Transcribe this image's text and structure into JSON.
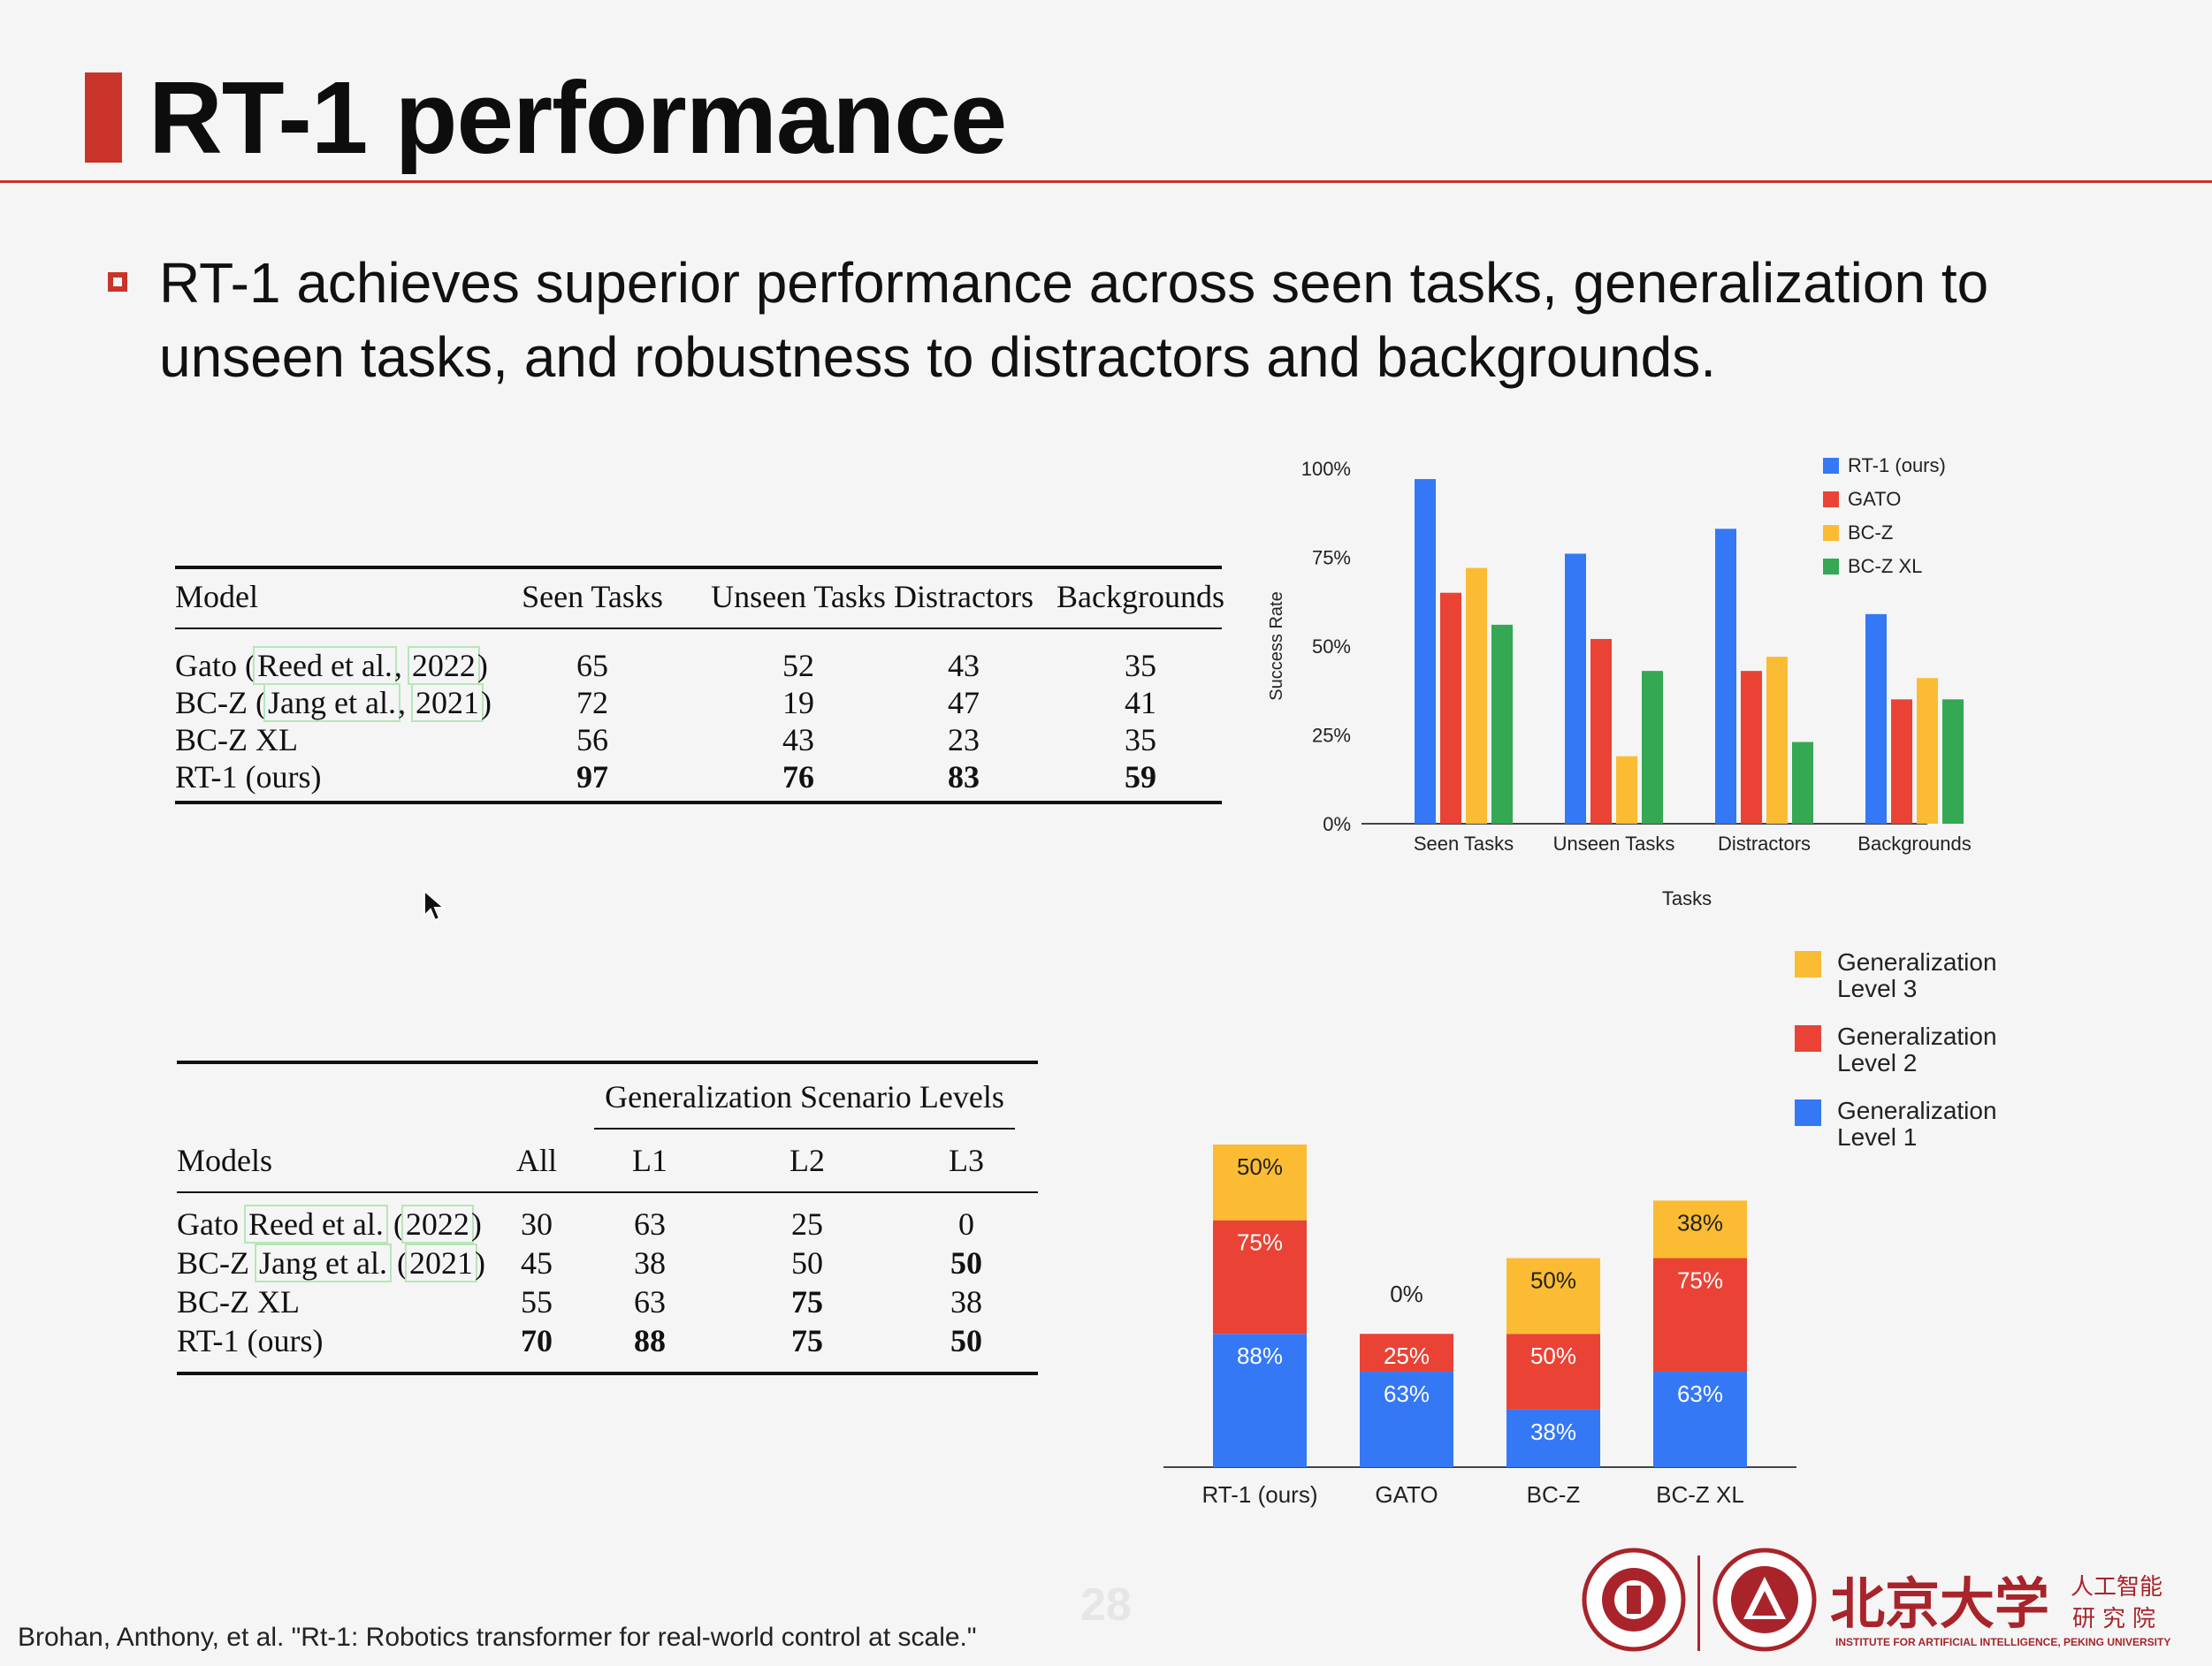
{
  "slide": {
    "title": "RT-1 performance",
    "bullet": "RT-1 achieves superior performance across seen tasks, generalization to unseen tasks, and robustness to distractors and backgrounds.",
    "reference": "Brohan, Anthony, et al. \"Rt-1: Robotics transformer for real-world control at scale.\"",
    "page_number": "28",
    "accent_color": "#c9342a"
  },
  "table1": {
    "headers": [
      "Model",
      "Seen Tasks",
      "Unseen Tasks",
      "Distractors",
      "Backgrounds"
    ],
    "rows": [
      {
        "model": "Gato",
        "cite_a": "Reed et al.",
        "cite_b": "2022",
        "values": [
          "65",
          "52",
          "43",
          "35"
        ],
        "bold": false
      },
      {
        "model": "BC-Z",
        "cite_a": "Jang et al.",
        "cite_b": "2021",
        "values": [
          "72",
          "19",
          "47",
          "41"
        ],
        "bold": false
      },
      {
        "model": "BC-Z XL",
        "values": [
          "56",
          "43",
          "23",
          "35"
        ],
        "bold": false
      },
      {
        "model": "RT-1 (ours)",
        "values": [
          "97",
          "76",
          "83",
          "59"
        ],
        "bold": true
      }
    ]
  },
  "table2": {
    "group_header": "Generalization Scenario Levels",
    "headers": [
      "Models",
      "All",
      "L1",
      "L2",
      "L3"
    ],
    "rows": [
      {
        "model": "Gato",
        "cite_a": "Reed et al.",
        "cite_b": "2022",
        "values": [
          "30",
          "63",
          "25",
          "0"
        ],
        "bold": [
          false,
          false,
          false,
          false
        ]
      },
      {
        "model": "BC-Z",
        "cite_a": "Jang et al.",
        "cite_b": "2021",
        "values": [
          "45",
          "38",
          "50",
          "50"
        ],
        "bold": [
          false,
          false,
          false,
          true
        ]
      },
      {
        "model": "BC-Z XL",
        "values": [
          "55",
          "63",
          "75",
          "38"
        ],
        "bold": [
          false,
          false,
          true,
          false
        ]
      },
      {
        "model": "RT-1 (ours)",
        "values": [
          "70",
          "88",
          "75",
          "50"
        ],
        "bold": [
          true,
          true,
          true,
          true
        ]
      }
    ]
  },
  "chart_data": [
    {
      "type": "bar",
      "title": "",
      "xlabel": "Tasks",
      "ylabel": "Success Rate",
      "ylim": [
        0,
        100
      ],
      "y_ticks": [
        "0%",
        "25%",
        "50%",
        "75%",
        "100%"
      ],
      "categories": [
        "Seen Tasks",
        "Unseen Tasks",
        "Distractors",
        "Backgrounds"
      ],
      "series": [
        {
          "name": "RT-1 (ours)",
          "color": "#3478f6",
          "values": [
            97,
            76,
            83,
            59
          ]
        },
        {
          "name": "GATO",
          "color": "#ea4335",
          "values": [
            65,
            52,
            43,
            35
          ]
        },
        {
          "name": "BC-Z",
          "color": "#fbbc34",
          "values": [
            72,
            19,
            47,
            41
          ]
        },
        {
          "name": "BC-Z XL",
          "color": "#34a853",
          "values": [
            56,
            43,
            23,
            35
          ]
        }
      ],
      "legend": "top-right",
      "grid": false
    },
    {
      "type": "bar",
      "stacked": true,
      "title": "",
      "categories": [
        "RT-1 (ours)",
        "GATO",
        "BC-Z",
        "BC-Z XL"
      ],
      "series": [
        {
          "name": "Generalization Level 1",
          "color": "#3478f6",
          "values": [
            88,
            63,
            38,
            63
          ],
          "labels": [
            "88%",
            "63%",
            "38%",
            "63%"
          ]
        },
        {
          "name": "Generalization Level 2",
          "color": "#ea4335",
          "values": [
            75,
            25,
            50,
            75
          ],
          "labels": [
            "75%",
            "25%",
            "50%",
            "75%"
          ]
        },
        {
          "name": "Generalization Level 3",
          "color": "#fbbc34",
          "values": [
            50,
            0,
            50,
            38
          ],
          "labels": [
            "50%",
            "0%",
            "50%",
            "38%"
          ]
        }
      ],
      "legend": "right"
    }
  ],
  "logos": {
    "pku_cn": "北京大学",
    "institute_cn_line1": "人工智能",
    "institute_cn_line2": "研究院",
    "institute_en": "INSTITUTE FOR ARTIFICIAL INTELLIGENCE, PEKING UNIVERSITY"
  }
}
